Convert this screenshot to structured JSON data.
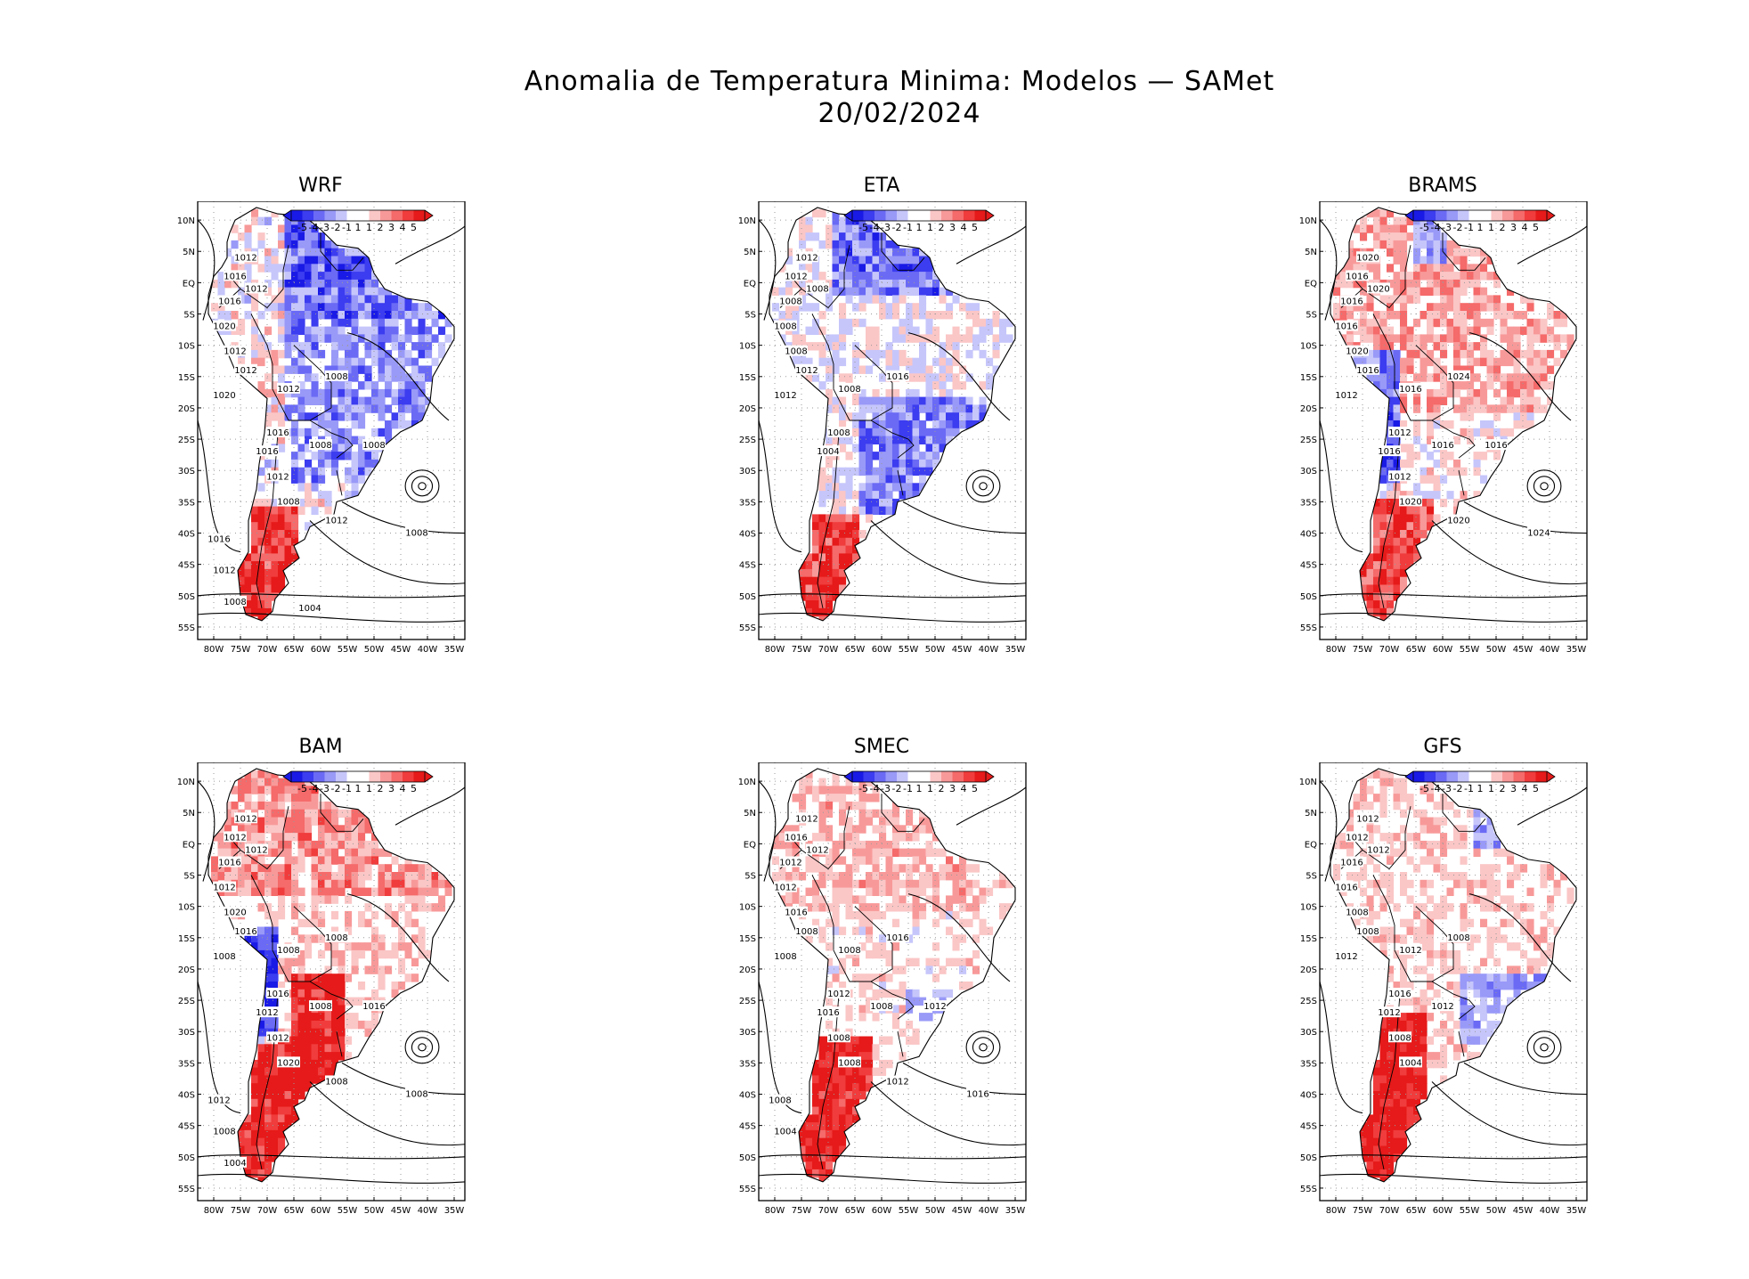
{
  "page": {
    "title_line1": "Anomalia de Temperatura Minima: Modelos — SAMet",
    "title_line2": "20/02/2024"
  },
  "colorbar": {
    "labels": [
      "-5",
      "-4",
      "-3",
      "-2",
      "-1",
      "1",
      "1",
      "2",
      "3",
      "4",
      "5"
    ],
    "colors": [
      "#1a1ae6",
      "#3c3cf0",
      "#6a6af5",
      "#9999f8",
      "#c6c6fb",
      "#ffffff",
      "#ffffff",
      "#fbc6c6",
      "#f89999",
      "#f56a6a",
      "#f03c3c",
      "#e61a1a"
    ]
  },
  "axes": {
    "lat_labels": [
      "10N",
      "5N",
      "EQ",
      "5S",
      "10S",
      "15S",
      "20S",
      "25S",
      "30S",
      "35S",
      "40S",
      "45S",
      "50S",
      "55S"
    ],
    "lon_labels": [
      "80W",
      "75W",
      "70W",
      "65W",
      "60W",
      "55W",
      "50W",
      "45W",
      "40W",
      "35W"
    ]
  },
  "panels": [
    {
      "title": "WRF",
      "scheme": "wrf",
      "isobars": [
        "1012",
        "1016",
        "1012",
        "1016",
        "1020",
        "1012",
        "1012",
        "1012",
        "1008",
        "1020",
        "1016",
        "1016",
        "1008",
        "1012",
        "1008",
        "1012",
        "1008",
        "1008",
        "1016",
        "1012",
        "1008",
        "1004"
      ]
    },
    {
      "title": "ETA",
      "scheme": "eta",
      "isobars": [
        "1012",
        "1012",
        "1008",
        "1008",
        "1008",
        "1008",
        "1012",
        "1008",
        "1016",
        "1012",
        "1008",
        "1004"
      ]
    },
    {
      "title": "BRAMS",
      "scheme": "brams",
      "isobars": [
        "1020",
        "1016",
        "1020",
        "1016",
        "1016",
        "1020",
        "1016",
        "1016",
        "1024",
        "1012",
        "1012",
        "1016",
        "1016",
        "1012",
        "1020",
        "1020",
        "1024",
        "1016"
      ]
    },
    {
      "title": "BAM",
      "scheme": "bam",
      "isobars": [
        "1012",
        "1012",
        "1012",
        "1016",
        "1012",
        "1020",
        "1016",
        "1008",
        "1008",
        "1008",
        "1016",
        "1012",
        "1008",
        "1012",
        "1020",
        "1008",
        "1008",
        "1016",
        "1012",
        "1008",
        "1004"
      ]
    },
    {
      "title": "SMEC",
      "scheme": "smec",
      "isobars": [
        "1012",
        "1016",
        "1012",
        "1012",
        "1012",
        "1016",
        "1008",
        "1008",
        "1016",
        "1008",
        "1012",
        "1016",
        "1008",
        "1008",
        "1008",
        "1012",
        "1016",
        "1012",
        "1008",
        "1004"
      ]
    },
    {
      "title": "GFS",
      "scheme": "gfs",
      "isobars": [
        "1012",
        "1012",
        "1012",
        "1016",
        "1016",
        "1008",
        "1008",
        "1012",
        "1008",
        "1012",
        "1016",
        "1012",
        "1012",
        "1008",
        "1004"
      ]
    }
  ]
}
